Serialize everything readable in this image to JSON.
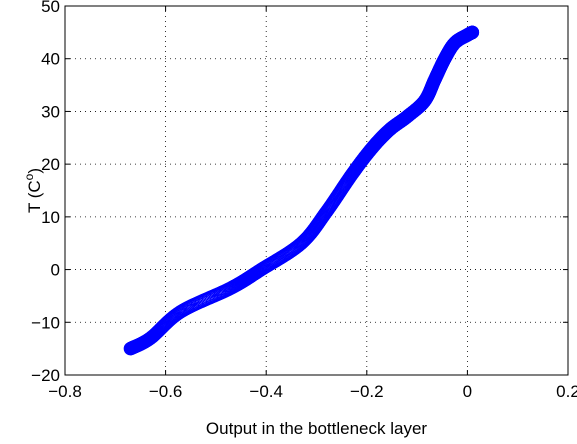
{
  "chart_data": {
    "type": "scatter",
    "title": "",
    "xlabel": "Output in the bottleneck layer",
    "ylabel_base": "T (C",
    "ylabel_sup": "o",
    "ylabel_end": ")",
    "xlim": [
      -0.8,
      0.2
    ],
    "ylim": [
      -20,
      50
    ],
    "xticks": [
      -0.8,
      -0.6,
      -0.4,
      -0.2,
      0,
      0.2
    ],
    "xtick_labels": [
      "−0.8",
      "−0.6",
      "−0.4",
      "−0.2",
      "0",
      "0.2"
    ],
    "yticks": [
      -20,
      -10,
      0,
      10,
      20,
      30,
      40,
      50
    ],
    "ytick_labels": [
      "−20",
      "−10",
      "0",
      "10",
      "20",
      "30",
      "40",
      "50"
    ],
    "grid": true,
    "grid_style": "dotted",
    "marker": "circle",
    "marker_color": "#0000ff",
    "curve_points": [
      {
        "x": -0.67,
        "y": -15
      },
      {
        "x": -0.63,
        "y": -13
      },
      {
        "x": -0.57,
        "y": -8
      },
      {
        "x": -0.47,
        "y": -3.5
      },
      {
        "x": -0.41,
        "y": 0
      },
      {
        "x": -0.33,
        "y": 5
      },
      {
        "x": -0.28,
        "y": 11
      },
      {
        "x": -0.23,
        "y": 18
      },
      {
        "x": -0.19,
        "y": 23
      },
      {
        "x": -0.155,
        "y": 26.5
      },
      {
        "x": -0.12,
        "y": 29
      },
      {
        "x": -0.085,
        "y": 32
      },
      {
        "x": -0.065,
        "y": 36
      },
      {
        "x": -0.045,
        "y": 40
      },
      {
        "x": -0.025,
        "y": 43
      },
      {
        "x": 0.0,
        "y": 44.5
      },
      {
        "x": 0.01,
        "y": 45
      }
    ]
  }
}
